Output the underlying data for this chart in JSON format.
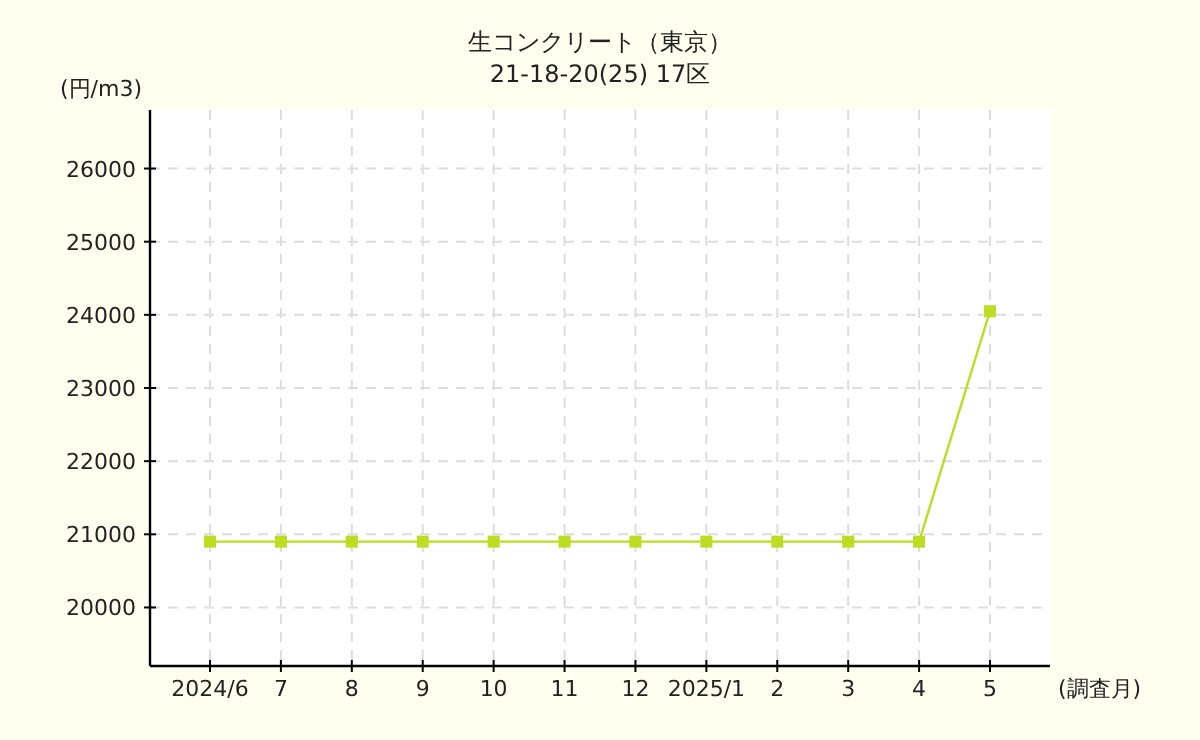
{
  "chart_data": {
    "type": "line",
    "title": "生コンクリート（東京）",
    "subtitle": "21-18-20(25) 17区",
    "ylabel": "(円/m3)",
    "xlabel": "(調査月)",
    "categories": [
      "2024/6",
      "7",
      "8",
      "9",
      "10",
      "11",
      "12",
      "2025/1",
      "2",
      "3",
      "4",
      "5"
    ],
    "series": [
      {
        "color": "#bbdd22",
        "values": [
          20900,
          20900,
          20900,
          20900,
          20900,
          20900,
          20900,
          20900,
          20900,
          20900,
          20900,
          24050
        ]
      }
    ],
    "ylim": [
      19200,
      26800
    ],
    "yticks": [
      20000,
      21000,
      22000,
      23000,
      24000,
      25000,
      26000
    ],
    "grid": true,
    "marker": "square",
    "line_style": "solid"
  }
}
